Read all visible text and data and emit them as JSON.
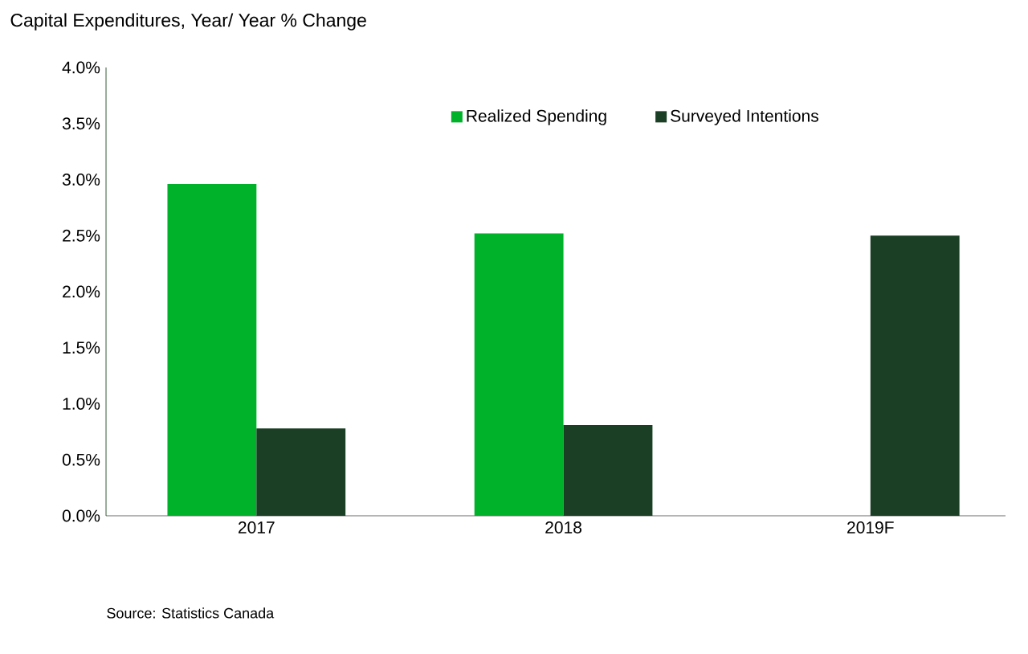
{
  "chart_data": {
    "type": "bar",
    "title": "Capital Expenditures, Year/ Year % Change",
    "categories": [
      "2017",
      "2018",
      "2019F"
    ],
    "series": [
      {
        "name": "Realized Spending",
        "color": "#00b22a",
        "values": [
          2.96,
          2.52,
          null
        ]
      },
      {
        "name": "Surveyed Intentions",
        "color": "#1a3f24",
        "values": [
          0.78,
          0.81,
          2.5
        ]
      }
    ],
    "ylim": [
      0,
      4
    ],
    "yticks": [
      {
        "value": 0,
        "label": "0.0%"
      },
      {
        "value": 0.5,
        "label": "0.5%"
      },
      {
        "value": 1,
        "label": "1.0%"
      },
      {
        "value": 1.5,
        "label": "1.5%"
      },
      {
        "value": 2,
        "label": "2.0%"
      },
      {
        "value": 2.5,
        "label": "2.5%"
      },
      {
        "value": 3,
        "label": "3.0%"
      },
      {
        "value": 3.5,
        "label": "3.5%"
      },
      {
        "value": 4,
        "label": "4.0%"
      }
    ],
    "legend": "top",
    "grid": false,
    "annotations": [
      "Source: Statistics Canada"
    ]
  }
}
